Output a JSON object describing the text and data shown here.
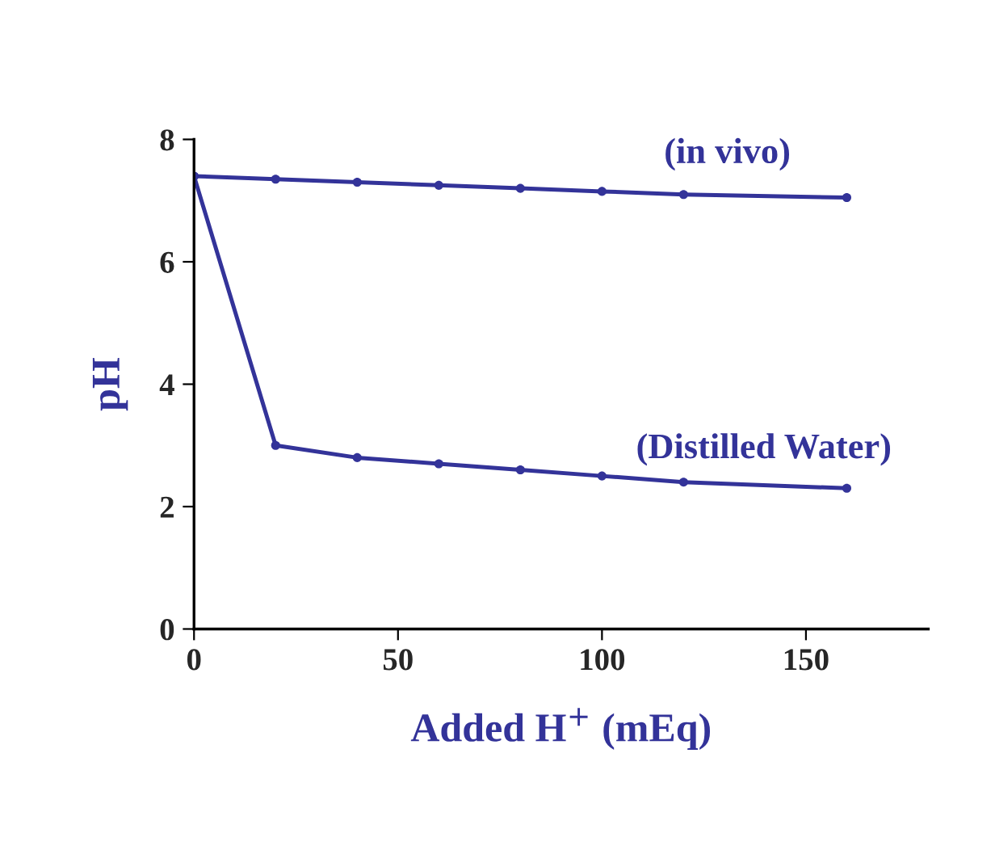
{
  "chart_data": {
    "type": "line",
    "xlabel": "Added H$^{+}$ (mEq)",
    "ylabel": "pH",
    "x": [
      0,
      20,
      40,
      60,
      80,
      100,
      120,
      160
    ],
    "series": [
      {
        "name": "(in vivo)",
        "color": "#333399",
        "values": [
          7.4,
          7.35,
          7.3,
          7.25,
          7.2,
          7.15,
          7.1,
          7.05
        ]
      },
      {
        "name": "(Distilled Water)",
        "color": "#333399",
        "values": [
          7.4,
          3.0,
          2.8,
          2.7,
          2.6,
          2.5,
          2.4,
          2.3
        ]
      }
    ],
    "xlim": [
      0,
      180
    ],
    "xticks": [
      0,
      50,
      100,
      150
    ],
    "ylim": [
      0,
      8
    ],
    "yticks": [
      0,
      2,
      4,
      6,
      8
    ],
    "grid": false,
    "legend": false,
    "marker": "circle",
    "line_style": "solid"
  }
}
